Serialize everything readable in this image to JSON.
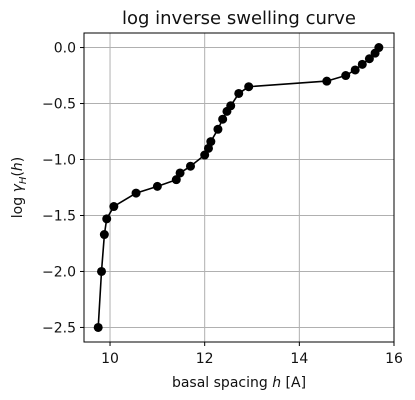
{
  "chart_data": {
    "type": "line",
    "title": "log inverse swelling curve",
    "xlabel": "basal spacing h [A]",
    "ylabel": "log γ_H(h)",
    "xlim": [
      9.45,
      16.0
    ],
    "ylim": [
      -2.63,
      0.13
    ],
    "xticks": [
      10,
      12,
      14,
      16
    ],
    "yticks": [
      0.0,
      -0.5,
      -1.0,
      -1.5,
      -2.0,
      -2.5
    ],
    "xtick_labels": [
      "10",
      "12",
      "14",
      "16"
    ],
    "ytick_labels": [
      "0.0",
      "−0.5",
      "−1.0",
      "−1.5",
      "−2.0",
      "−2.5"
    ],
    "grid": true,
    "legend": false,
    "color": "#000000",
    "x": [
      9.75,
      9.82,
      9.88,
      9.93,
      10.08,
      10.55,
      11.0,
      11.4,
      11.48,
      11.7,
      12.0,
      12.08,
      12.13,
      12.28,
      12.38,
      12.47,
      12.55,
      12.72,
      12.93,
      14.58,
      14.98,
      15.18,
      15.33,
      15.48,
      15.6,
      15.68
    ],
    "y": [
      -2.5,
      -2.0,
      -1.67,
      -1.53,
      -1.42,
      -1.3,
      -1.24,
      -1.18,
      -1.12,
      -1.06,
      -0.96,
      -0.9,
      -0.84,
      -0.73,
      -0.64,
      -0.57,
      -0.52,
      -0.41,
      -0.35,
      -0.3,
      -0.25,
      -0.2,
      -0.15,
      -0.1,
      -0.05,
      0.0
    ]
  }
}
